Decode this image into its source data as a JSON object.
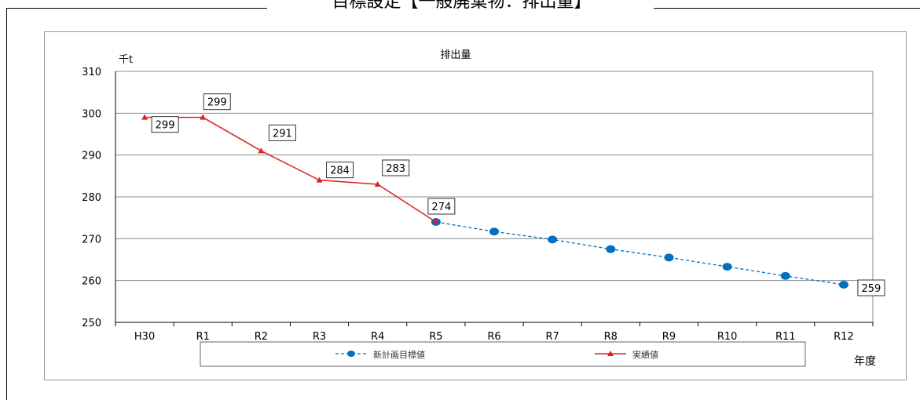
{
  "page_heading": "目標設定【一般廃棄物：排出量】",
  "chart_data": {
    "type": "line",
    "title": "排出量",
    "ylabel": "千t",
    "xlabel": "年度",
    "categories": [
      "H30",
      "R1",
      "R2",
      "R3",
      "R4",
      "R5",
      "R6",
      "R7",
      "R8",
      "R9",
      "R10",
      "R11",
      "R12"
    ],
    "ylim": [
      250,
      310
    ],
    "y_ticks": [
      250,
      260,
      270,
      280,
      290,
      300,
      310
    ],
    "grid": true,
    "legend_position": "bottom",
    "series": [
      {
        "name": "新計画目標値",
        "color": "#0070c0",
        "style": "dashed",
        "marker": "circle",
        "values": [
          null,
          null,
          null,
          null,
          null,
          274,
          271.7,
          269.8,
          267.5,
          265.5,
          263.3,
          261.1,
          259
        ]
      },
      {
        "name": "実績値",
        "color": "#e02020",
        "style": "solid",
        "marker": "triangle",
        "values": [
          299,
          299,
          291,
          284,
          283,
          274,
          null,
          null,
          null,
          null,
          null,
          null,
          null
        ]
      }
    ],
    "data_labels": [
      {
        "category": "H30",
        "text": "299"
      },
      {
        "category": "R1",
        "text": "299"
      },
      {
        "category": "R2",
        "text": "291"
      },
      {
        "category": "R3",
        "text": "284"
      },
      {
        "category": "R4",
        "text": "283"
      },
      {
        "category": "R5",
        "text": "274"
      },
      {
        "category": "R12",
        "text": "259"
      }
    ]
  }
}
